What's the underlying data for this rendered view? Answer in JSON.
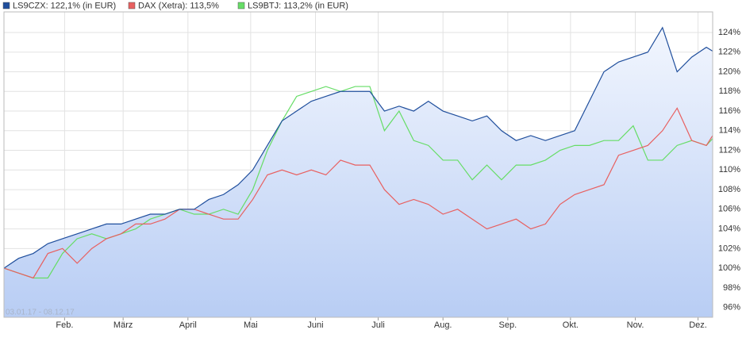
{
  "chart_data": {
    "type": "line",
    "annotation": "03.01.17 - 08.12.17",
    "x": [
      "03.01.17",
      "10.01.17",
      "17.01.17",
      "24.01.17",
      "31.01.17",
      "07.02.17",
      "14.02.17",
      "21.02.17",
      "28.02.17",
      "07.03.17",
      "14.03.17",
      "21.03.17",
      "28.03.17",
      "04.04.17",
      "11.04.17",
      "18.04.17",
      "25.04.17",
      "02.05.17",
      "09.05.17",
      "16.05.17",
      "23.05.17",
      "30.05.17",
      "06.06.17",
      "13.06.17",
      "20.06.17",
      "27.06.17",
      "04.07.17",
      "11.07.17",
      "18.07.17",
      "25.07.17",
      "01.08.17",
      "08.08.17",
      "15.08.17",
      "22.08.17",
      "29.08.17",
      "05.09.17",
      "12.09.17",
      "19.09.17",
      "26.09.17",
      "03.10.17",
      "10.10.17",
      "17.10.17",
      "24.10.17",
      "31.10.17",
      "07.11.17",
      "14.11.17",
      "21.11.17",
      "28.11.17",
      "05.12.17",
      "08.12.17"
    ],
    "series": [
      {
        "name": "LS9CZX: 122,1% (in EUR)",
        "color": "#1f4e9c",
        "values": [
          100,
          101,
          101.5,
          102.5,
          103,
          103.5,
          104,
          104.5,
          104.5,
          105,
          105.5,
          105.5,
          106,
          106,
          107,
          107.5,
          108.5,
          110,
          112.5,
          115,
          116,
          117,
          117.5,
          118,
          118,
          118,
          116,
          116.5,
          116,
          117,
          116,
          115.5,
          115,
          115.5,
          114,
          113,
          113.5,
          113,
          113.5,
          114,
          117,
          120,
          121,
          121.5,
          122,
          124.5,
          120,
          121.5,
          122.5,
          122.1
        ]
      },
      {
        "name": "DAX (Xetra): 113,5%",
        "color": "#e86060",
        "values": [
          100,
          99.5,
          99,
          101.5,
          102,
          100.5,
          102,
          103,
          103.5,
          104.5,
          104.5,
          105,
          106,
          106,
          105.5,
          105,
          105,
          107,
          109.5,
          110,
          109.5,
          110,
          109.5,
          111,
          110.5,
          110.5,
          108,
          106.5,
          107,
          106.5,
          105.5,
          106,
          105,
          104,
          104.5,
          105,
          104,
          104.5,
          106.5,
          107.5,
          108,
          108.5,
          111.5,
          112,
          112.5,
          114,
          116.3,
          113,
          112.5,
          113.5
        ]
      },
      {
        "name": "LS9BTJ: 113,2% (in EUR)",
        "color": "#66dd66",
        "values": [
          100,
          99.5,
          99,
          99,
          101.5,
          103,
          103.5,
          103,
          103.5,
          104,
          105,
          105.5,
          106,
          105.5,
          105.5,
          106,
          105.5,
          108,
          112,
          115,
          117.5,
          118,
          118.5,
          118,
          118.5,
          118.5,
          114,
          116,
          113,
          112.5,
          111,
          111,
          109,
          110.5,
          109,
          110.5,
          110.5,
          111,
          112,
          112.5,
          112.5,
          113,
          113,
          114.5,
          111,
          111,
          112.5,
          113,
          112.5,
          113.2
        ]
      }
    ],
    "xlim": [
      "03.01.17",
      "08.12.17"
    ],
    "xticks": [
      {
        "value": "01.02.17",
        "label": "Feb."
      },
      {
        "value": "01.03.17",
        "label": "März"
      },
      {
        "value": "01.04.17",
        "label": "April"
      },
      {
        "value": "01.05.17",
        "label": "Mai"
      },
      {
        "value": "01.06.17",
        "label": "Juni"
      },
      {
        "value": "01.07.17",
        "label": "Juli"
      },
      {
        "value": "01.08.17",
        "label": "Aug."
      },
      {
        "value": "01.09.17",
        "label": "Sep."
      },
      {
        "value": "01.10.17",
        "label": "Okt."
      },
      {
        "value": "01.11.17",
        "label": "Nov."
      },
      {
        "value": "01.12.17",
        "label": "Dez."
      }
    ],
    "ylim": [
      95,
      126.1
    ],
    "yticks": [
      {
        "value": 96,
        "label": "96%"
      },
      {
        "value": 98,
        "label": "98%"
      },
      {
        "value": 100,
        "label": "100%"
      },
      {
        "value": 102,
        "label": "102%"
      },
      {
        "value": 104,
        "label": "104%"
      },
      {
        "value": 106,
        "label": "106%"
      },
      {
        "value": 108,
        "label": "108%"
      },
      {
        "value": 110,
        "label": "110%"
      },
      {
        "value": 112,
        "label": "112%"
      },
      {
        "value": 114,
        "label": "114%"
      },
      {
        "value": 116,
        "label": "116%"
      },
      {
        "value": 118,
        "label": "118%"
      },
      {
        "value": 120,
        "label": "120%"
      },
      {
        "value": 122,
        "label": "122%"
      },
      {
        "value": 124,
        "label": "124%"
      }
    ],
    "grid": true
  }
}
